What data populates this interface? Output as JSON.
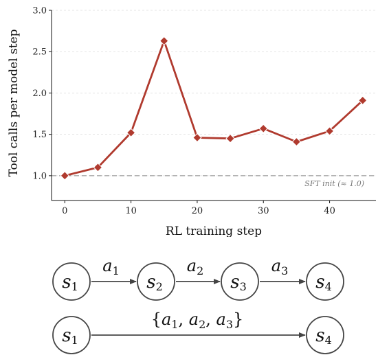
{
  "chart_data": {
    "type": "line",
    "title": "",
    "xlabel": "RL training step",
    "ylabel": "Tool calls per model step",
    "xlim": [
      -2,
      47
    ],
    "ylim": [
      0.7,
      3.0
    ],
    "x_ticks": [
      0,
      10,
      20,
      30,
      40
    ],
    "x_tick_labels": [
      "0",
      "10",
      "20",
      "30",
      "40"
    ],
    "y_ticks": [
      1.0,
      1.5,
      2.0,
      2.5,
      3.0
    ],
    "y_tick_labels": [
      "1.0",
      "1.5",
      "2.0",
      "2.5",
      "3.0"
    ],
    "grid": "horizontal dashed",
    "series": [
      {
        "x": [
          0,
          5,
          10,
          15,
          20,
          25,
          30,
          35,
          40,
          45
        ],
        "y": [
          1.0,
          1.1,
          1.52,
          2.63,
          1.46,
          1.45,
          1.57,
          1.41,
          1.54,
          1.91
        ],
        "color": "#b03a2e",
        "marker": "diamond"
      }
    ],
    "reference_line": {
      "y": 1.0,
      "label": "SFT init (≈ 1.0)",
      "color": "#999999"
    }
  },
  "diagram": {
    "stepwise": {
      "states": [
        {
          "base": "s",
          "sub": "1"
        },
        {
          "base": "s",
          "sub": "2"
        },
        {
          "base": "s",
          "sub": "3"
        },
        {
          "base": "s",
          "sub": "4"
        }
      ],
      "actions": [
        {
          "base": "a",
          "sub": "1"
        },
        {
          "base": "a",
          "sub": "2"
        },
        {
          "base": "a",
          "sub": "3"
        }
      ]
    },
    "combined": {
      "states": [
        {
          "base": "s",
          "sub": "1"
        },
        {
          "base": "s",
          "sub": "4"
        }
      ],
      "action_set": [
        {
          "base": "a",
          "sub": "1"
        },
        {
          "base": "a",
          "sub": "2"
        },
        {
          "base": "a",
          "sub": "3"
        }
      ]
    }
  }
}
